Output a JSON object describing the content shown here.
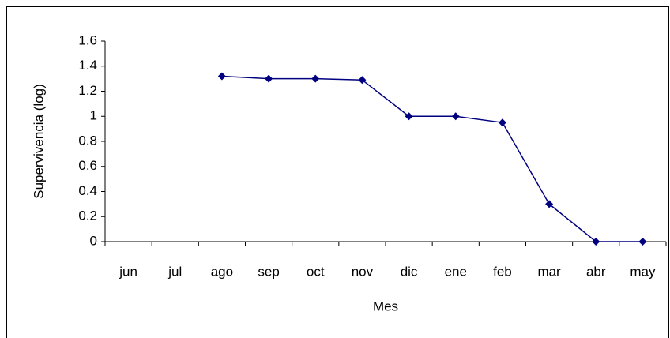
{
  "chart_data": {
    "type": "line",
    "x_label": "Mes",
    "y_label": "Supervivencia (log)",
    "categories": [
      "jun",
      "jul",
      "ago",
      "sep",
      "oct",
      "nov",
      "dic",
      "ene",
      "feb",
      "mar",
      "abr",
      "may"
    ],
    "values": [
      null,
      null,
      1.32,
      1.3,
      1.3,
      1.29,
      1.0,
      1.0,
      0.95,
      0.3,
      0,
      0
    ],
    "color": "#000080",
    "ylim": [
      0,
      1.6
    ],
    "yticks": [
      0,
      0.2,
      0.4,
      0.6,
      0.8,
      1,
      1.2,
      1.4,
      1.6
    ],
    "grid": false
  }
}
